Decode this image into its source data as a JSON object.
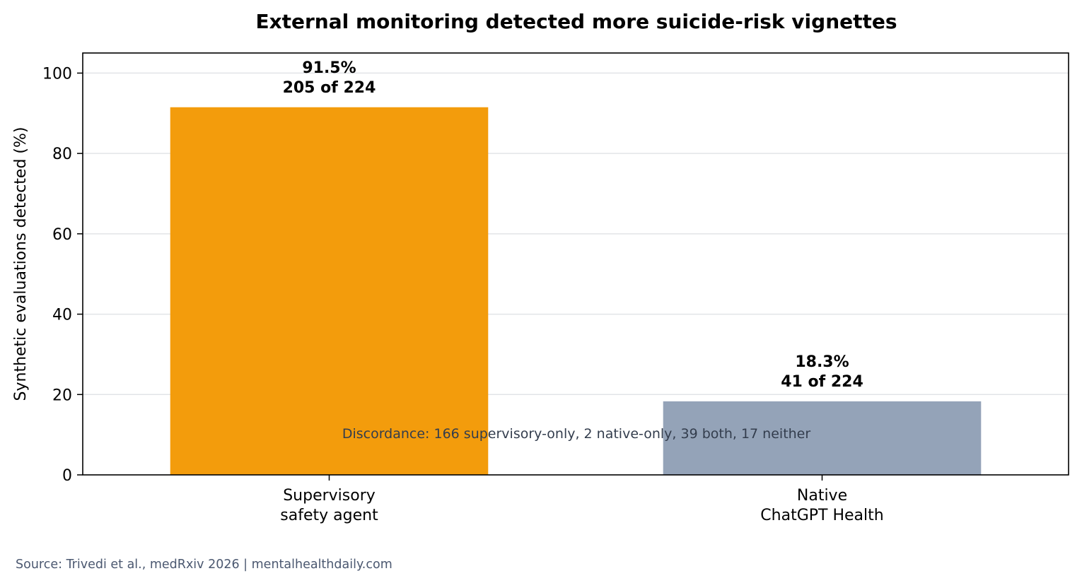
{
  "chart_data": {
    "type": "bar",
    "title": "External monitoring detected more suicide-risk vignettes",
    "ylabel": "Synthetic evaluations detected (%)",
    "xlabel": "",
    "ylim": [
      0,
      105
    ],
    "yticks": [
      0,
      20,
      40,
      60,
      80,
      100
    ],
    "grid": true,
    "categories": [
      [
        "Supervisory",
        "safety agent"
      ],
      [
        "Native",
        "ChatGPT Health"
      ]
    ],
    "values": [
      91.5,
      18.3
    ],
    "value_labels": [
      "91.5%",
      "18.3%"
    ],
    "count_labels": [
      "205 of 224",
      "41 of 224"
    ],
    "colors": [
      "#f39c0c",
      "#94a3b8"
    ],
    "annotation": "Discordance: 166 supervisory-only, 2 native-only, 39 both, 17 neither",
    "source": "Source: Trivedi et al., medRxiv 2026 | mentalhealthdaily.com"
  }
}
